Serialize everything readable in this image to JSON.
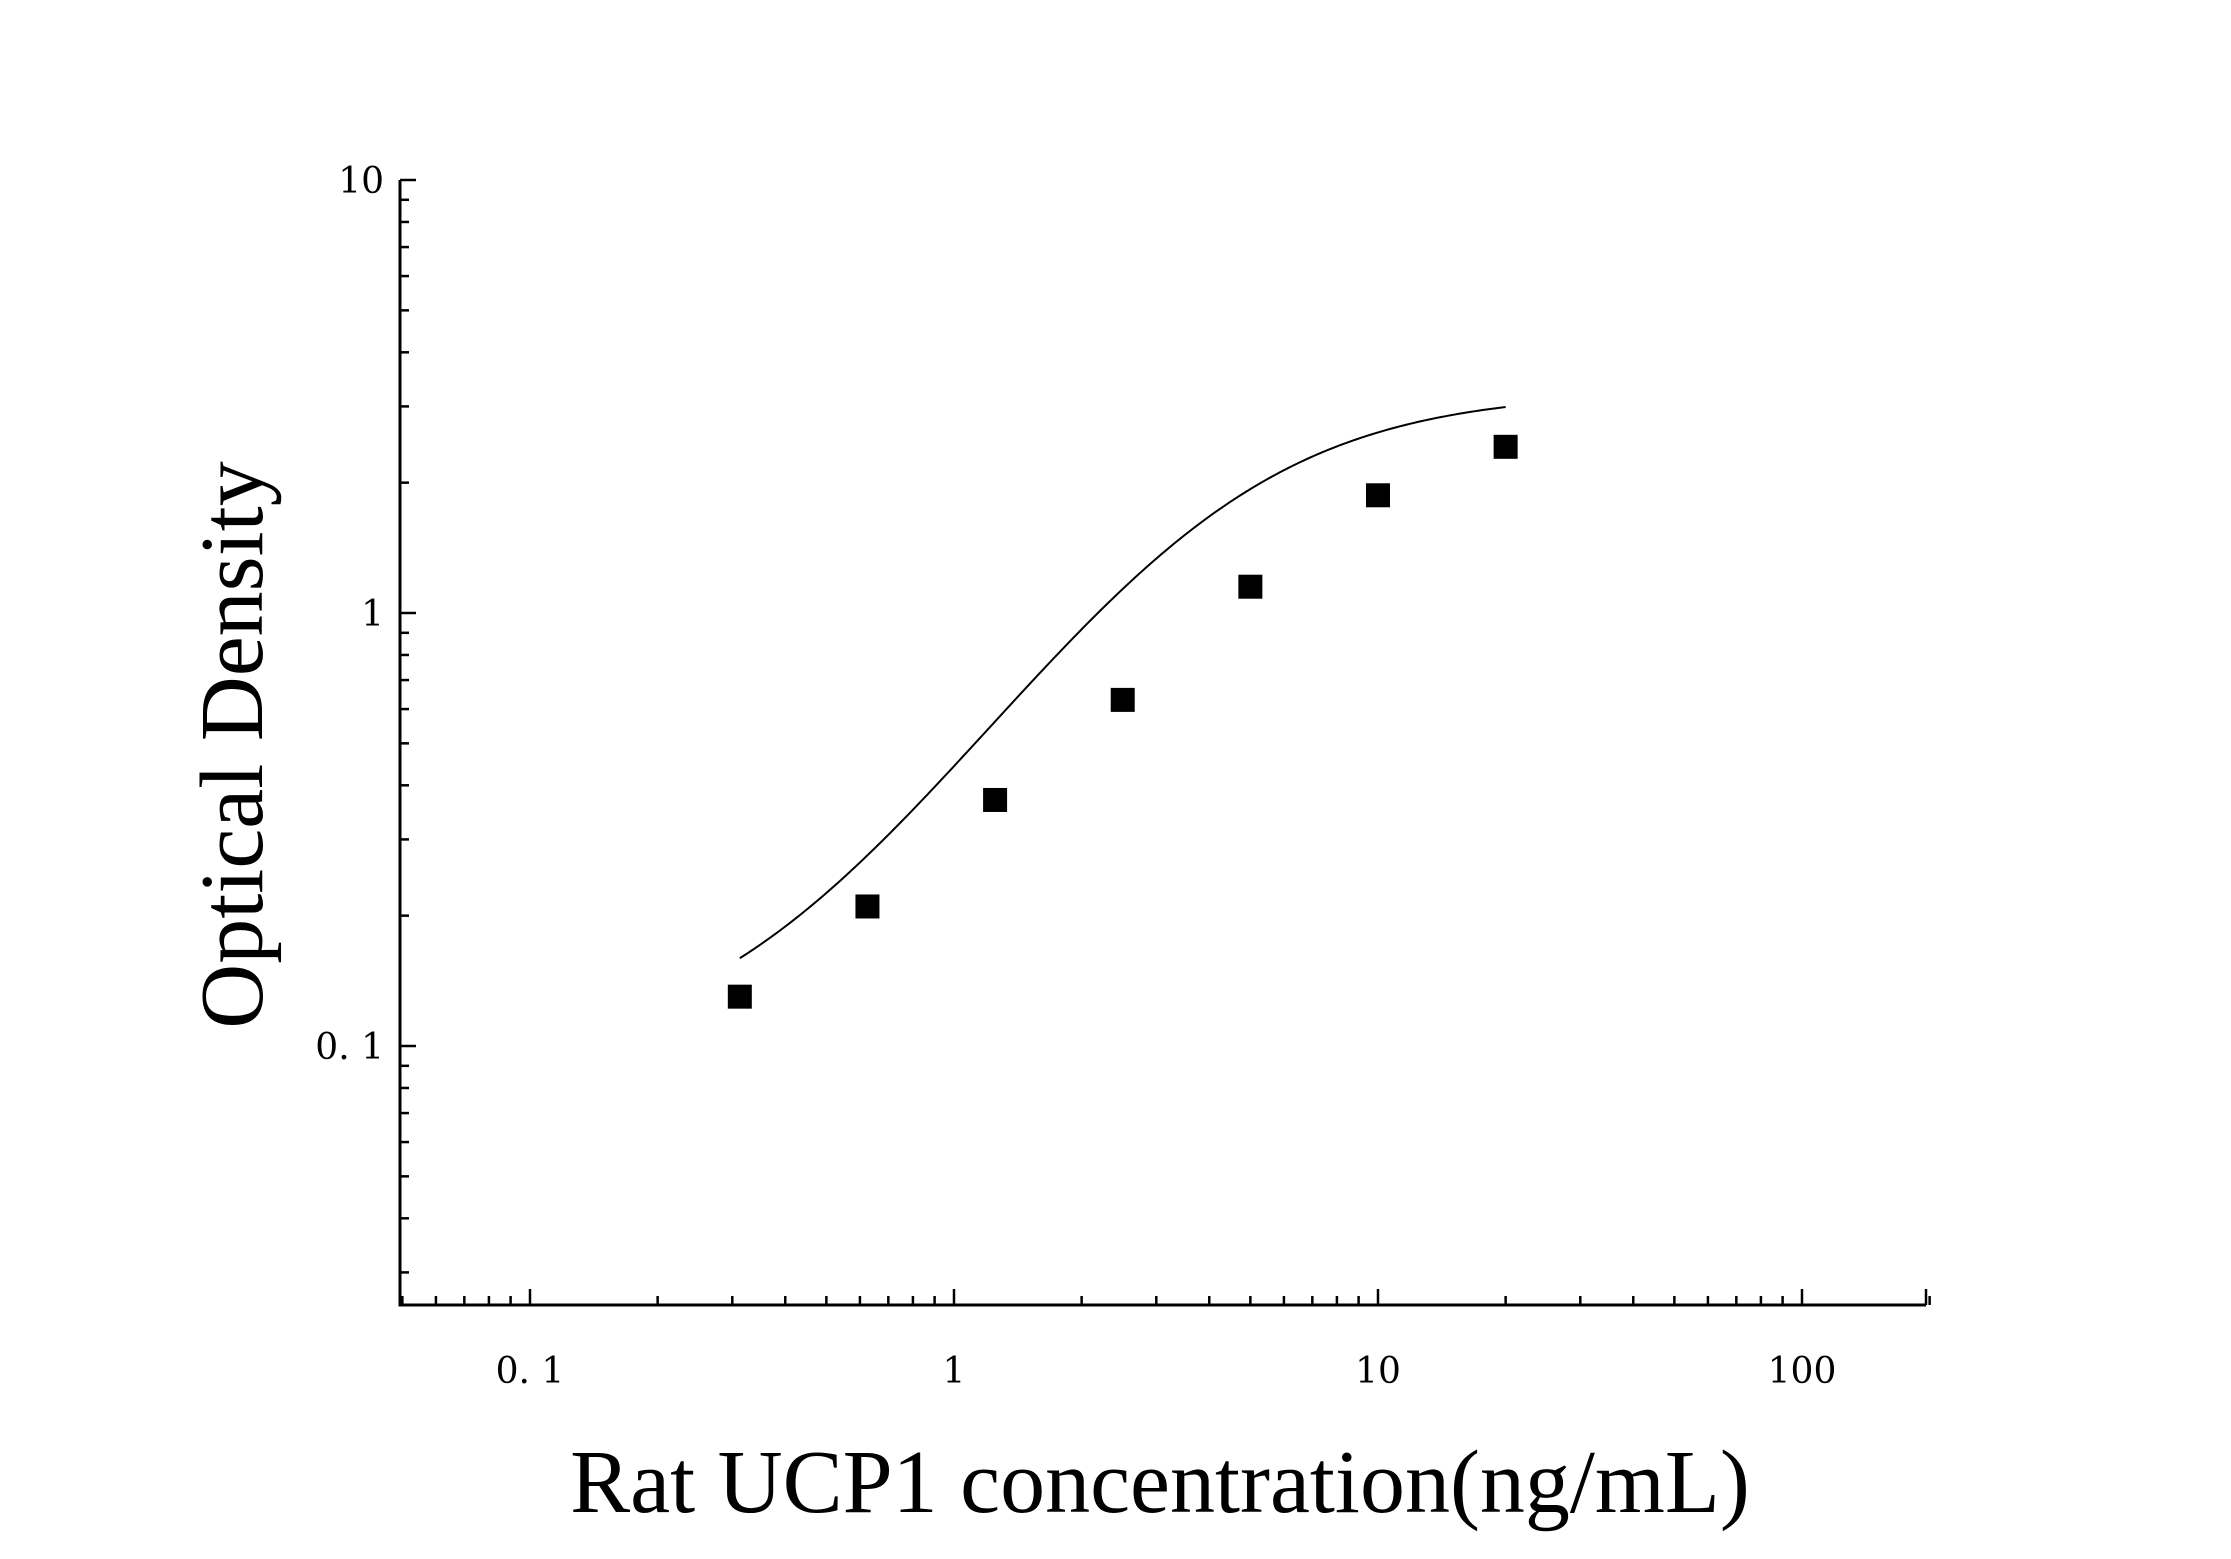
{
  "chart_data": {
    "type": "scatter",
    "x_scale": "log",
    "y_scale": "log",
    "xlabel": "Rat UCP1 concentration(ng/mL)",
    "ylabel": "Optical Density",
    "xlim": [
      0.05,
      200
    ],
    "ylim": [
      0.025,
      10
    ],
    "x_ticks": [
      {
        "value": 0.1,
        "label": "0. 1"
      },
      {
        "value": 1,
        "label": "1"
      },
      {
        "value": 10,
        "label": "10"
      },
      {
        "value": 100,
        "label": "100"
      }
    ],
    "y_ticks": [
      {
        "value": 0.1,
        "label": "0. 1"
      },
      {
        "value": 1,
        "label": "1"
      },
      {
        "value": 10,
        "label": "10"
      }
    ],
    "grid": false,
    "series": [
      {
        "marker": "square",
        "color": "#000000",
        "points": [
          {
            "x": 0.3125,
            "y": 0.13
          },
          {
            "x": 0.625,
            "y": 0.21
          },
          {
            "x": 1.25,
            "y": 0.37
          },
          {
            "x": 2.5,
            "y": 0.63
          },
          {
            "x": 5,
            "y": 1.15
          },
          {
            "x": 10,
            "y": 1.87
          },
          {
            "x": 20,
            "y": 2.42
          }
        ]
      }
    ],
    "fit_curve": {
      "type": "4PL",
      "color": "#000000",
      "x_range": [
        0.3125,
        20
      ],
      "params": {
        "A": 0.092,
        "B": 1.5,
        "C": 4.0,
        "D": 3.25
      }
    }
  }
}
